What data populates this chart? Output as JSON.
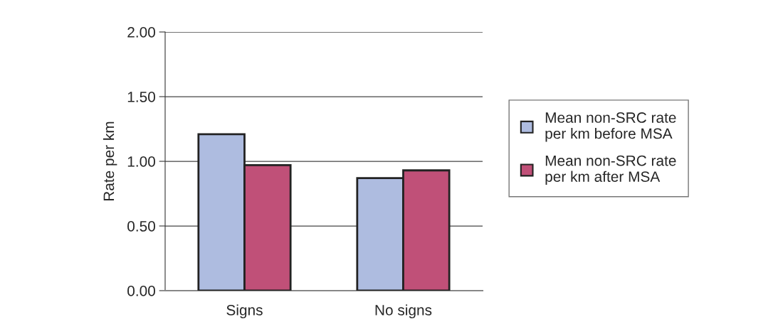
{
  "chart_data": {
    "type": "bar",
    "ylabel": "Rate per km",
    "categories": [
      "Signs",
      "No signs"
    ],
    "series": [
      {
        "name": "Mean non-SRC rate\nper km before MSA",
        "color": "#aebce0",
        "values": [
          1.21,
          0.87
        ]
      },
      {
        "name": "Mean non-SRC rate\nper km after MSA",
        "color": "#c05078",
        "values": [
          0.97,
          0.93
        ]
      }
    ],
    "ylim": [
      0,
      2
    ],
    "yticks": [
      {
        "value": 0,
        "label": "0.00"
      },
      {
        "value": 0.5,
        "label": "0.50"
      },
      {
        "value": 1,
        "label": "1.00"
      },
      {
        "value": 1.5,
        "label": "1.50"
      },
      {
        "value": 2,
        "label": "2.00"
      }
    ],
    "grid": "y",
    "legend": "right"
  }
}
